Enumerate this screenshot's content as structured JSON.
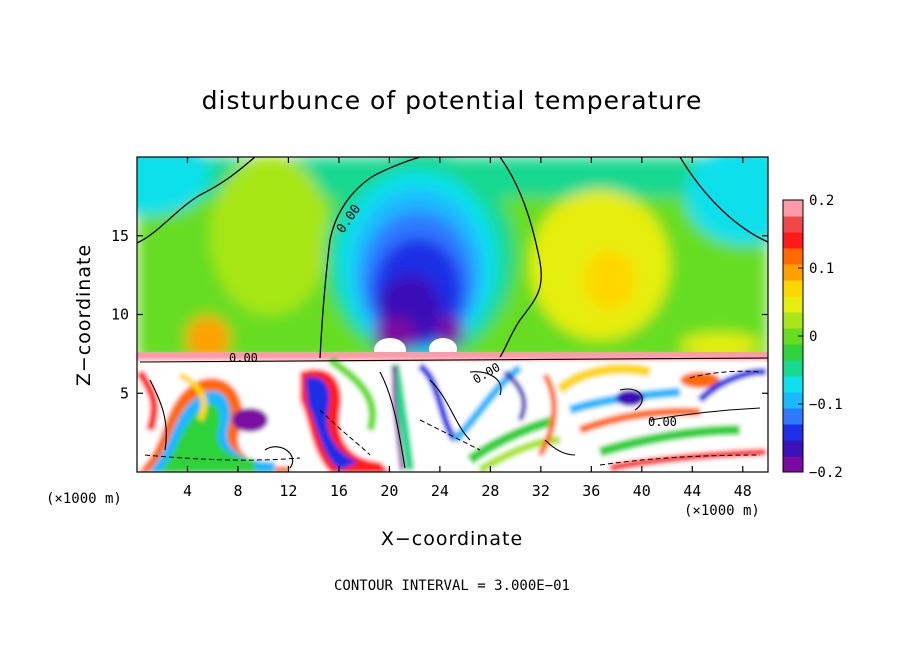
{
  "chart_data": {
    "type": "heatmap",
    "title": "disturbunce of potential temperature",
    "xlabel": "X−coordinate",
    "ylabel": "Z−coordinate",
    "x_unit_left": "(×1000 m)",
    "x_unit_right": "(×1000 m)",
    "xlim": [
      0,
      50
    ],
    "ylim": [
      0,
      20
    ],
    "xticks": [
      4,
      8,
      12,
      16,
      20,
      24,
      28,
      32,
      36,
      40,
      44,
      48
    ],
    "yticks": [
      5,
      10,
      15
    ],
    "colorbar": {
      "range": [
        -0.2,
        0.2
      ],
      "ticks": [
        0.2,
        0.1,
        0,
        -0.1,
        -0.2
      ],
      "tick_labels": [
        "0.2",
        "0.1",
        "0",
        "−0.1",
        "−0.2"
      ],
      "colors": [
        "#7b0aa0",
        "#3a10b8",
        "#1e2fe6",
        "#2f78ff",
        "#1ab8ff",
        "#0fe0ea",
        "#18d890",
        "#2fd23a",
        "#66dd20",
        "#a8e619",
        "#e6ee10",
        "#ffd700",
        "#ffa000",
        "#ff6a00",
        "#ff1a1a",
        "#f04848",
        "#ff9aa8"
      ]
    },
    "contour_labels": [
      "0.00",
      "0.00",
      "0.00",
      "0.00"
    ],
    "contour_interval_text": "CONTOUR INTERVAL = 3.000E−01"
  }
}
